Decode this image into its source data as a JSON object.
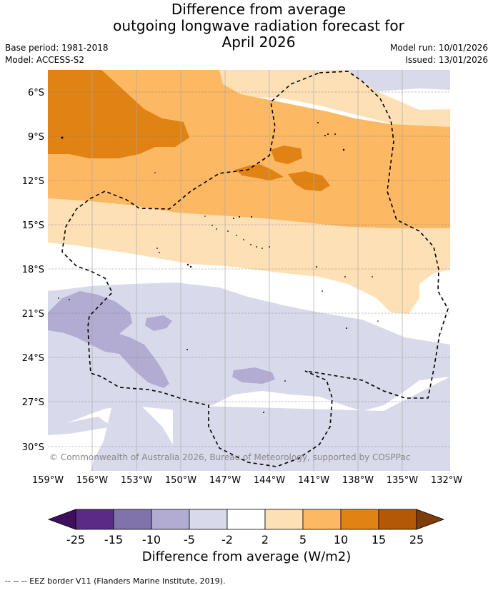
{
  "title": {
    "line1": "Difference from average",
    "line2": "outgoing longwave radiation forecast for",
    "line3": "April 2026"
  },
  "meta": {
    "base_period": "Base period: 1981-2018",
    "model": "Model: ACCESS-S2",
    "model_run": "Model run: 10/01/2026",
    "issued": "Issued: 13/01/2026"
  },
  "axes": {
    "lat_labels": [
      "6°S",
      "9°S",
      "12°S",
      "15°S",
      "18°S",
      "21°S",
      "24°S",
      "27°S",
      "30°S"
    ],
    "lon_labels": [
      "159°W",
      "156°W",
      "153°W",
      "150°W",
      "147°W",
      "144°W",
      "141°W",
      "138°W",
      "135°W",
      "132°W"
    ]
  },
  "copyright": "© Commonwealth of Australia 2026, Bureau of Meteorology, supported by COSPPac",
  "legend": {
    "tick_labels": [
      "-25",
      "-15",
      "-10",
      "-5",
      "-2",
      "2",
      "5",
      "10",
      "15",
      "25"
    ],
    "colors": {
      "below_min": "#3f0f5e",
      "n25_n15": "#5b2a86",
      "n15_n10": "#8073ac",
      "n10_n5": "#b2abd2",
      "n5_n2": "#d8daeb",
      "n2_2": "#ffffff",
      "p2_p5": "#fee0b6",
      "p5_p10": "#fdb863",
      "p10_p15": "#e08214",
      "p15_p25": "#b35806",
      "above_max": "#7f3b08"
    },
    "title": "Difference from average (W/m2)"
  },
  "footnote": "--  --  -- EEZ border V11 (Flanders Marine Institute, 2019)."
}
